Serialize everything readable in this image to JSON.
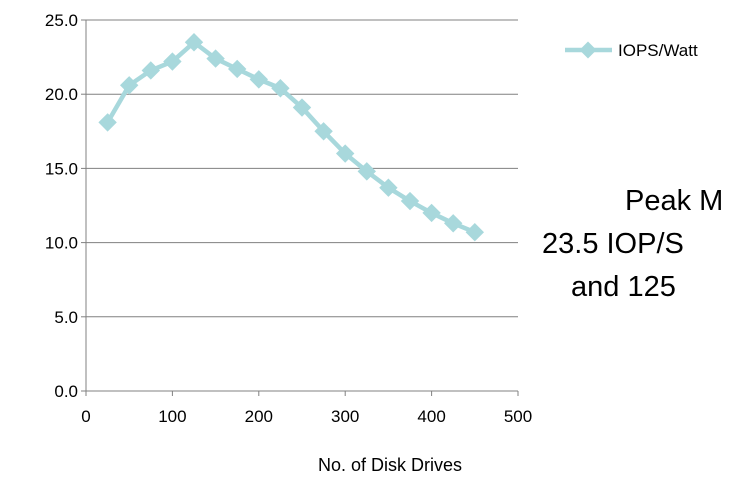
{
  "chart_data": {
    "type": "line",
    "title": "",
    "xlabel": "No. of Disk Drives",
    "ylabel": "",
    "xlim": [
      0,
      500
    ],
    "ylim": [
      0,
      25
    ],
    "xticks": [
      "0",
      "100",
      "200",
      "300",
      "400",
      "500"
    ],
    "yticks": [
      "0.0",
      "5.0",
      "10.0",
      "15.0",
      "20.0",
      "25.0"
    ],
    "grid": "horizontal",
    "legend_position": "top-right",
    "series": [
      {
        "name": "IOPS/Watt",
        "color": "#a8d8dc",
        "marker": "diamond",
        "x": [
          25,
          50,
          75,
          100,
          125,
          150,
          175,
          200,
          225,
          250,
          275,
          300,
          325,
          350,
          375,
          400,
          425,
          450
        ],
        "y": [
          18.1,
          20.6,
          21.6,
          22.2,
          23.5,
          22.4,
          21.7,
          21.0,
          20.4,
          19.1,
          17.5,
          16.0,
          14.8,
          13.7,
          12.8,
          12.0,
          11.3,
          10.7
        ]
      }
    ]
  },
  "annotation": {
    "lines": [
      "Peak M",
      "23.5 IOP/S",
      "and 125"
    ]
  }
}
